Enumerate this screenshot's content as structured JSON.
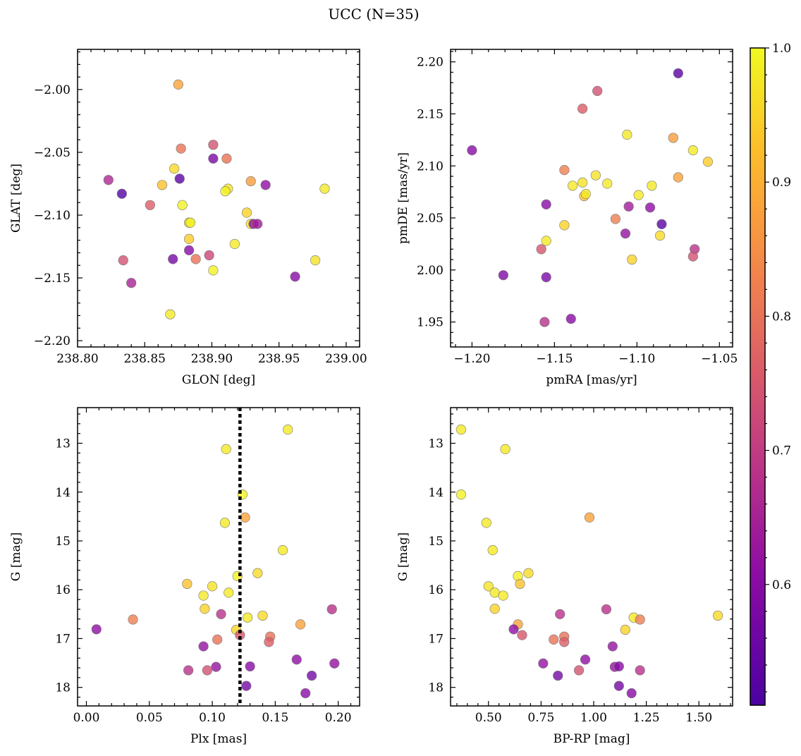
{
  "figure_title": "UCC (N=35)",
  "colorbar": {
    "min": 0.51,
    "max": 1.0,
    "ticks": [
      0.6,
      0.7,
      0.8,
      0.9,
      1.0
    ],
    "tick_labels": [
      "0.6",
      "0.7",
      "0.8",
      "0.9",
      "1.0"
    ],
    "colormap": "plasma"
  },
  "chart_data": [
    {
      "type": "scatter",
      "xlabel": "GLON [deg]",
      "ylabel": "GLAT [deg]",
      "xlim": [
        238.8,
        239.01
      ],
      "ylim": [
        -2.205,
        -1.968
      ],
      "y_inverted": false,
      "xticks": [
        238.8,
        238.85,
        238.9,
        238.95,
        239.0
      ],
      "xtick_labels": [
        "238.80",
        "238.85",
        "238.90",
        "238.95",
        "239.00"
      ],
      "yticks": [
        -2.2,
        -2.15,
        -2.1,
        -2.05,
        -2.0
      ],
      "ytick_labels": [
        "−2.20",
        "−2.15",
        "−2.10",
        "−2.05",
        "−2.00"
      ],
      "points": [
        {
          "x": 238.875,
          "y": -1.996,
          "c": 0.88
        },
        {
          "x": 238.901,
          "y": -2.044,
          "c": 0.74
        },
        {
          "x": 238.877,
          "y": -2.047,
          "c": 0.8
        },
        {
          "x": 238.911,
          "y": -2.055,
          "c": 0.8
        },
        {
          "x": 238.901,
          "y": -2.055,
          "c": 0.58
        },
        {
          "x": 238.872,
          "y": -2.063,
          "c": 0.96
        },
        {
          "x": 238.823,
          "y": -2.072,
          "c": 0.66
        },
        {
          "x": 238.876,
          "y": -2.071,
          "c": 0.53
        },
        {
          "x": 238.929,
          "y": -2.073,
          "c": 0.87
        },
        {
          "x": 238.94,
          "y": -2.076,
          "c": 0.61
        },
        {
          "x": 238.863,
          "y": -2.076,
          "c": 0.93
        },
        {
          "x": 238.912,
          "y": -2.079,
          "c": 0.97
        },
        {
          "x": 238.984,
          "y": -2.079,
          "c": 0.98
        },
        {
          "x": 238.91,
          "y": -2.081,
          "c": 0.99
        },
        {
          "x": 238.833,
          "y": -2.083,
          "c": 0.52
        },
        {
          "x": 238.854,
          "y": -2.092,
          "c": 0.76
        },
        {
          "x": 238.878,
          "y": -2.092,
          "c": 0.99
        },
        {
          "x": 238.926,
          "y": -2.098,
          "c": 0.95
        },
        {
          "x": 238.883,
          "y": -2.106,
          "c": 0.93
        },
        {
          "x": 238.884,
          "y": -2.106,
          "c": 1.0
        },
        {
          "x": 238.929,
          "y": -2.107,
          "c": 0.97
        },
        {
          "x": 238.931,
          "y": -2.107,
          "c": 0.61
        },
        {
          "x": 238.934,
          "y": -2.107,
          "c": 0.64
        },
        {
          "x": 238.883,
          "y": -2.119,
          "c": 0.94
        },
        {
          "x": 238.917,
          "y": -2.123,
          "c": 0.98
        },
        {
          "x": 238.883,
          "y": -2.128,
          "c": 0.6
        },
        {
          "x": 238.898,
          "y": -2.132,
          "c": 0.72
        },
        {
          "x": 238.871,
          "y": -2.135,
          "c": 0.57
        },
        {
          "x": 238.888,
          "y": -2.135,
          "c": 0.8
        },
        {
          "x": 238.834,
          "y": -2.136,
          "c": 0.74
        },
        {
          "x": 238.977,
          "y": -2.136,
          "c": 0.97
        },
        {
          "x": 238.901,
          "y": -2.144,
          "c": 0.99
        },
        {
          "x": 238.962,
          "y": -2.149,
          "c": 0.6
        },
        {
          "x": 238.84,
          "y": -2.154,
          "c": 0.65
        },
        {
          "x": 238.869,
          "y": -2.179,
          "c": 0.98
        }
      ]
    },
    {
      "type": "scatter",
      "xlabel": "pmRA [mas/yr]",
      "ylabel": "pmDE [mas/yr]",
      "xlim": [
        -1.213,
        -1.042
      ],
      "ylim": [
        1.926,
        2.212
      ],
      "y_inverted": false,
      "xticks": [
        -1.2,
        -1.15,
        -1.1,
        -1.05
      ],
      "xtick_labels": [
        "−1.20",
        "−1.15",
        "−1.10",
        "−1.05"
      ],
      "yticks": [
        1.95,
        2.0,
        2.05,
        2.1,
        2.15,
        2.2
      ],
      "ytick_labels": [
        "1.95",
        "2.00",
        "2.05",
        "2.10",
        "2.15",
        "2.20"
      ],
      "points": [
        {
          "x": -1.075,
          "y": 2.189,
          "c": 0.53
        },
        {
          "x": -1.124,
          "y": 2.172,
          "c": 0.74
        },
        {
          "x": -1.133,
          "y": 2.155,
          "c": 0.76
        },
        {
          "x": -1.106,
          "y": 2.13,
          "c": 0.98
        },
        {
          "x": -1.078,
          "y": 2.127,
          "c": 0.87
        },
        {
          "x": -1.2,
          "y": 2.115,
          "c": 0.6
        },
        {
          "x": -1.066,
          "y": 2.115,
          "c": 0.98
        },
        {
          "x": -1.057,
          "y": 2.104,
          "c": 0.94
        },
        {
          "x": -1.144,
          "y": 2.096,
          "c": 0.82
        },
        {
          "x": -1.125,
          "y": 2.091,
          "c": 0.97
        },
        {
          "x": -1.075,
          "y": 2.089,
          "c": 0.88
        },
        {
          "x": -1.133,
          "y": 2.084,
          "c": 0.97
        },
        {
          "x": -1.118,
          "y": 2.083,
          "c": 0.98
        },
        {
          "x": -1.139,
          "y": 2.081,
          "c": 0.98
        },
        {
          "x": -1.091,
          "y": 2.081,
          "c": 0.98
        },
        {
          "x": -1.132,
          "y": 2.071,
          "c": 0.93
        },
        {
          "x": -1.131,
          "y": 2.073,
          "c": 0.98
        },
        {
          "x": -1.099,
          "y": 2.072,
          "c": 0.98
        },
        {
          "x": -1.155,
          "y": 2.063,
          "c": 0.6
        },
        {
          "x": -1.105,
          "y": 2.061,
          "c": 0.64
        },
        {
          "x": -1.092,
          "y": 2.06,
          "c": 0.61
        },
        {
          "x": -1.113,
          "y": 2.049,
          "c": 0.82
        },
        {
          "x": -1.085,
          "y": 2.044,
          "c": 0.53
        },
        {
          "x": -1.144,
          "y": 2.043,
          "c": 0.95
        },
        {
          "x": -1.107,
          "y": 2.035,
          "c": 0.62
        },
        {
          "x": -1.086,
          "y": 2.033,
          "c": 0.96
        },
        {
          "x": -1.155,
          "y": 2.028,
          "c": 0.98
        },
        {
          "x": -1.158,
          "y": 2.02,
          "c": 0.75
        },
        {
          "x": -1.065,
          "y": 2.02,
          "c": 0.68
        },
        {
          "x": -1.066,
          "y": 2.013,
          "c": 0.74
        },
        {
          "x": -1.103,
          "y": 2.01,
          "c": 0.95
        },
        {
          "x": -1.181,
          "y": 1.995,
          "c": 0.59
        },
        {
          "x": -1.155,
          "y": 1.993,
          "c": 0.58
        },
        {
          "x": -1.14,
          "y": 1.953,
          "c": 0.6
        },
        {
          "x": -1.156,
          "y": 1.95,
          "c": 0.68
        }
      ]
    },
    {
      "type": "scatter",
      "xlabel": "Plx [mas]",
      "ylabel": "G [mag]",
      "xlim": [
        -0.007,
        0.217
      ],
      "ylim": [
        12.27,
        18.38
      ],
      "y_inverted": true,
      "xticks": [
        0.0,
        0.05,
        0.1,
        0.15,
        0.2
      ],
      "xtick_labels": [
        "0.00",
        "0.05",
        "0.10",
        "0.15",
        "0.20"
      ],
      "yticks": [
        13,
        14,
        15,
        16,
        17,
        18
      ],
      "ytick_labels": [
        "13",
        "14",
        "15",
        "16",
        "17",
        "18"
      ],
      "vline": 0.122,
      "points": [
        {
          "x": 0.16,
          "y": 12.72,
          "c": 0.98
        },
        {
          "x": 0.111,
          "y": 13.12,
          "c": 0.98
        },
        {
          "x": 0.124,
          "y": 14.05,
          "c": 0.99
        },
        {
          "x": 0.11,
          "y": 14.63,
          "c": 0.98
        },
        {
          "x": 0.126,
          "y": 14.52,
          "c": 0.88
        },
        {
          "x": 0.156,
          "y": 15.19,
          "c": 0.98
        },
        {
          "x": 0.136,
          "y": 15.66,
          "c": 0.96
        },
        {
          "x": 0.12,
          "y": 15.72,
          "c": 0.99
        },
        {
          "x": 0.08,
          "y": 15.88,
          "c": 0.93
        },
        {
          "x": 0.1,
          "y": 15.93,
          "c": 0.97
        },
        {
          "x": 0.113,
          "y": 16.06,
          "c": 0.98
        },
        {
          "x": 0.093,
          "y": 16.12,
          "c": 0.98
        },
        {
          "x": 0.094,
          "y": 16.39,
          "c": 0.95
        },
        {
          "x": 0.195,
          "y": 16.4,
          "c": 0.68
        },
        {
          "x": 0.107,
          "y": 16.5,
          "c": 0.68
        },
        {
          "x": 0.14,
          "y": 16.53,
          "c": 0.96
        },
        {
          "x": 0.128,
          "y": 16.57,
          "c": 0.98
        },
        {
          "x": 0.037,
          "y": 16.61,
          "c": 0.82
        },
        {
          "x": 0.17,
          "y": 16.71,
          "c": 0.88
        },
        {
          "x": 0.008,
          "y": 16.81,
          "c": 0.61
        },
        {
          "x": 0.119,
          "y": 16.82,
          "c": 0.95
        },
        {
          "x": 0.122,
          "y": 16.93,
          "c": 0.75
        },
        {
          "x": 0.146,
          "y": 16.96,
          "c": 0.8
        },
        {
          "x": 0.104,
          "y": 17.02,
          "c": 0.8
        },
        {
          "x": 0.145,
          "y": 17.07,
          "c": 0.76
        },
        {
          "x": 0.093,
          "y": 17.16,
          "c": 0.62
        },
        {
          "x": 0.167,
          "y": 17.43,
          "c": 0.61
        },
        {
          "x": 0.197,
          "y": 17.51,
          "c": 0.62
        },
        {
          "x": 0.103,
          "y": 17.58,
          "c": 0.62
        },
        {
          "x": 0.13,
          "y": 17.57,
          "c": 0.6
        },
        {
          "x": 0.081,
          "y": 17.65,
          "c": 0.68
        },
        {
          "x": 0.096,
          "y": 17.65,
          "c": 0.74
        },
        {
          "x": 0.179,
          "y": 17.76,
          "c": 0.57
        },
        {
          "x": 0.127,
          "y": 17.97,
          "c": 0.57
        },
        {
          "x": 0.174,
          "y": 18.12,
          "c": 0.6
        }
      ]
    },
    {
      "type": "scatter",
      "xlabel": "BP-RP [mag]",
      "ylabel": "G [mag]",
      "xlim": [
        0.32,
        1.66
      ],
      "ylim": [
        12.27,
        18.38
      ],
      "y_inverted": true,
      "xticks": [
        0.5,
        0.75,
        1.0,
        1.25,
        1.5
      ],
      "xtick_labels": [
        "0.50",
        "0.75",
        "1.00",
        "1.25",
        "1.50"
      ],
      "yticks": [
        13,
        14,
        15,
        16,
        17,
        18
      ],
      "ytick_labels": [
        "13",
        "14",
        "15",
        "16",
        "17",
        "18"
      ],
      "points": [
        {
          "x": 0.37,
          "y": 12.72,
          "c": 0.98
        },
        {
          "x": 0.58,
          "y": 13.12,
          "c": 0.98
        },
        {
          "x": 0.37,
          "y": 14.05,
          "c": 0.99
        },
        {
          "x": 0.49,
          "y": 14.63,
          "c": 0.98
        },
        {
          "x": 0.98,
          "y": 14.52,
          "c": 0.88
        },
        {
          "x": 0.52,
          "y": 15.19,
          "c": 0.98
        },
        {
          "x": 0.69,
          "y": 15.66,
          "c": 0.96
        },
        {
          "x": 0.64,
          "y": 15.72,
          "c": 0.99
        },
        {
          "x": 0.65,
          "y": 15.88,
          "c": 0.93
        },
        {
          "x": 0.5,
          "y": 15.93,
          "c": 0.97
        },
        {
          "x": 0.53,
          "y": 16.06,
          "c": 0.98
        },
        {
          "x": 0.57,
          "y": 16.12,
          "c": 0.98
        },
        {
          "x": 0.53,
          "y": 16.39,
          "c": 0.95
        },
        {
          "x": 1.06,
          "y": 16.4,
          "c": 0.68
        },
        {
          "x": 0.84,
          "y": 16.5,
          "c": 0.68
        },
        {
          "x": 1.59,
          "y": 16.53,
          "c": 0.96
        },
        {
          "x": 1.19,
          "y": 16.57,
          "c": 0.98
        },
        {
          "x": 1.22,
          "y": 16.61,
          "c": 0.82
        },
        {
          "x": 0.64,
          "y": 16.71,
          "c": 0.88
        },
        {
          "x": 0.62,
          "y": 16.81,
          "c": 0.61
        },
        {
          "x": 1.15,
          "y": 16.82,
          "c": 0.95
        },
        {
          "x": 0.66,
          "y": 16.93,
          "c": 0.75
        },
        {
          "x": 0.86,
          "y": 16.96,
          "c": 0.8
        },
        {
          "x": 0.81,
          "y": 17.02,
          "c": 0.8
        },
        {
          "x": 0.86,
          "y": 17.07,
          "c": 0.76
        },
        {
          "x": 1.09,
          "y": 17.16,
          "c": 0.62
        },
        {
          "x": 0.96,
          "y": 17.43,
          "c": 0.61
        },
        {
          "x": 0.76,
          "y": 17.51,
          "c": 0.62
        },
        {
          "x": 1.1,
          "y": 17.58,
          "c": 0.62
        },
        {
          "x": 1.12,
          "y": 17.57,
          "c": 0.6
        },
        {
          "x": 1.22,
          "y": 17.65,
          "c": 0.68
        },
        {
          "x": 0.93,
          "y": 17.65,
          "c": 0.74
        },
        {
          "x": 0.83,
          "y": 17.76,
          "c": 0.57
        },
        {
          "x": 1.12,
          "y": 17.97,
          "c": 0.57
        },
        {
          "x": 1.18,
          "y": 18.12,
          "c": 0.6
        }
      ]
    }
  ]
}
